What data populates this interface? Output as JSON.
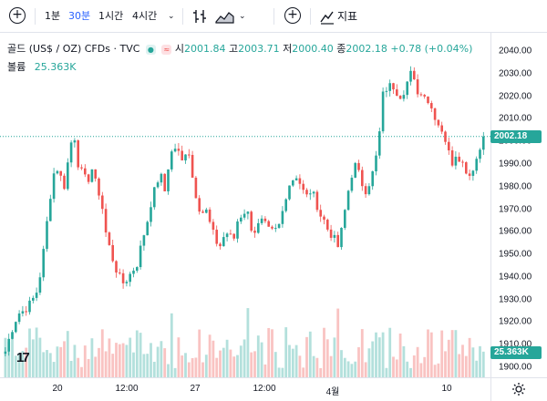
{
  "toolbar": {
    "add_label": "+",
    "intervals": [
      "1분",
      "30분",
      "1시간",
      "4시간"
    ],
    "active_interval": "30분",
    "compare_label": "+",
    "indicators_label": "지표"
  },
  "legend": {
    "symbol": "골드 (US$ / OZ)",
    "timeframe": "CFDs",
    "source": "TVC",
    "badge_text": "≈",
    "open_label": "시",
    "open_value": "2001.84",
    "high_label": "고",
    "high_value": "2003.71",
    "low_label": "저",
    "low_value": "2000.40",
    "close_label": "종",
    "close_value": "2002.18",
    "change_value": "+0.78",
    "change_pct": "(+0.04%)",
    "volume_label": "볼륨",
    "volume_value": "25.363K"
  },
  "price_axis": {
    "ticks": [
      "2040.00",
      "2030.00",
      "2020.00",
      "2010.00",
      "2000.00",
      "1990.00",
      "1980.00",
      "1970.00",
      "1960.00",
      "1950.00",
      "1940.00",
      "1930.00",
      "1920.00",
      "1910.00",
      "1900.00"
    ],
    "current_price_tag": "2002.18",
    "volume_tag": "25.363K",
    "settings_icon": "gear-icon"
  },
  "time_axis": {
    "ticks": [
      "20",
      "12:00",
      "27",
      "12:00",
      "4월",
      "10"
    ]
  },
  "colors": {
    "up": "#26a69a",
    "down": "#ef5350",
    "accent": "#2962ff",
    "price_tag": "#26a69a"
  },
  "chart_data": {
    "type": "candlestick",
    "ylim": [
      1900,
      2040
    ],
    "x": [
      "20",
      "12:00",
      "27",
      "12:00",
      "4월",
      "10"
    ],
    "close_path": [
      1907,
      1914,
      1920,
      1924,
      1925,
      1927,
      1930,
      1934,
      1945,
      1962,
      1978,
      1990,
      1985,
      1980,
      1995,
      2005,
      1990,
      1985,
      1982,
      1988,
      1980,
      1975,
      1960,
      1952,
      1945,
      1940,
      1937,
      1940,
      1943,
      1946,
      1956,
      1963,
      1973,
      1980,
      1986,
      1978,
      1992,
      1998,
      1995,
      1990,
      2000,
      1985,
      1975,
      1968,
      1970,
      1963,
      1957,
      1953,
      1958,
      1960,
      1955,
      1965,
      1968,
      1970,
      1962,
      1960,
      1965,
      1963,
      1960,
      1960,
      1962,
      1970,
      1980,
      1983,
      1985,
      1980,
      1975,
      1978,
      1975,
      1968,
      1965,
      1960,
      1958,
      1953,
      1962,
      1975,
      1985,
      1990,
      1983,
      1978,
      1982,
      1988,
      2000,
      2022,
      2024,
      2025,
      2022,
      2020,
      2025,
      2030,
      2025,
      2020,
      2022,
      2017,
      2013,
      2008,
      2005,
      1998,
      1990,
      1995,
      1992,
      1988,
      1985,
      1990,
      1995,
      2002
    ]
  }
}
